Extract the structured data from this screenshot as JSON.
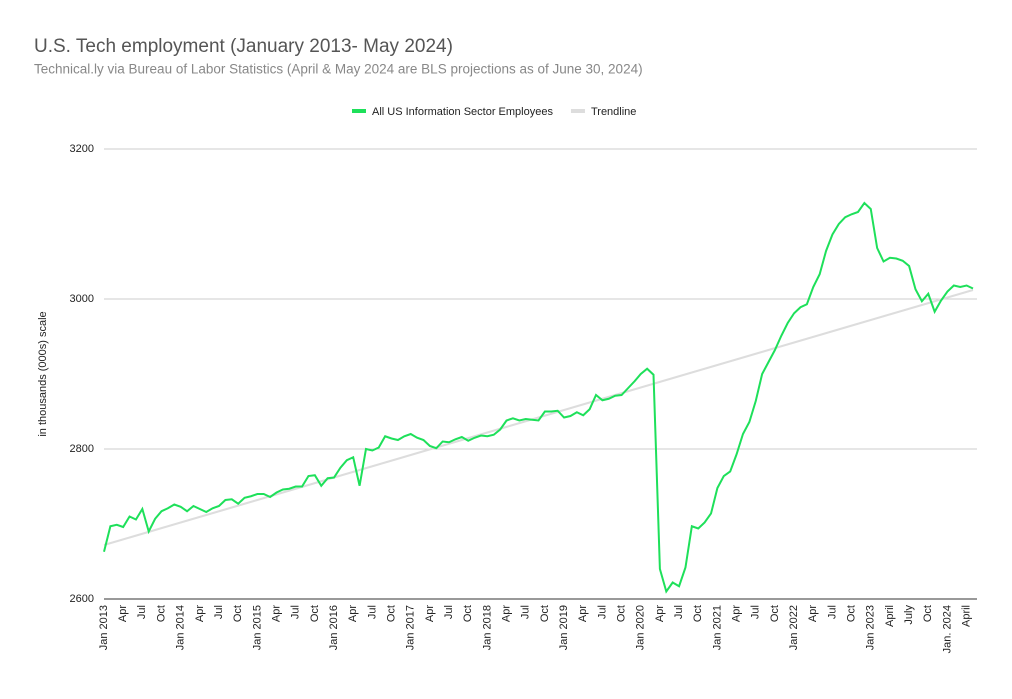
{
  "chart_data": {
    "type": "line",
    "title": "U.S. Tech employment (January 2013- May 2024)",
    "subtitle": "Technical.ly via Bureau of Labor Statistics (April & May 2024 are BLS projections as of June 30, 2024)",
    "y_label": "in thousands (000s) scale",
    "categories": [
      "Jan 2013",
      null,
      null,
      "Apr",
      null,
      null,
      "Jul",
      null,
      null,
      "Oct",
      null,
      null,
      "Jan 2014",
      null,
      null,
      "Apr",
      null,
      null,
      "Jul",
      null,
      null,
      "Oct",
      null,
      null,
      "Jan 2015",
      null,
      null,
      "Apr",
      null,
      null,
      "Jul",
      null,
      null,
      "Oct",
      null,
      null,
      "Jan 2016",
      null,
      null,
      "Apr",
      null,
      null,
      "Jul",
      null,
      null,
      "Oct",
      null,
      null,
      "Jan 2017",
      null,
      null,
      "Apr",
      null,
      null,
      "Jul",
      null,
      null,
      "Oct",
      null,
      null,
      "Jan 2018",
      null,
      null,
      "Apr",
      null,
      null,
      "Jul",
      null,
      null,
      "Oct",
      null,
      null,
      "Jan 2019",
      null,
      null,
      "Apr",
      null,
      null,
      "Jul",
      null,
      null,
      "Oct",
      null,
      null,
      "Jan 2020",
      null,
      null,
      "Apr",
      null,
      null,
      "Jul",
      null,
      null,
      "Oct",
      null,
      null,
      "Jan 2021",
      null,
      null,
      "Apr",
      null,
      null,
      "Jul",
      null,
      null,
      "Oct",
      null,
      null,
      "Jan 2022",
      null,
      null,
      "Apr",
      null,
      null,
      "Jul",
      null,
      null,
      "Oct",
      null,
      null,
      "Jan 2023",
      null,
      null,
      "April",
      null,
      null,
      "July",
      null,
      null,
      "Oct",
      null,
      null,
      "Jan. 2024",
      null,
      null,
      "April",
      null
    ],
    "series": [
      {
        "name": "All US Information Sector Employees",
        "color": "#1ee05a",
        "values": [
          2663,
          2697,
          2699,
          2696,
          2710,
          2706,
          2720,
          2690,
          2707,
          2717,
          2721,
          2726,
          2723,
          2717,
          2724,
          2720,
          2716,
          2721,
          2724,
          2732,
          2733,
          2727,
          2735,
          2737,
          2740,
          2740,
          2736,
          2742,
          2746,
          2747,
          2750,
          2750,
          2764,
          2765,
          2751,
          2761,
          2762,
          2775,
          2785,
          2789,
          2751,
          2800,
          2798,
          2802,
          2817,
          2814,
          2812,
          2817,
          2820,
          2815,
          2812,
          2804,
          2801,
          2810,
          2809,
          2813,
          2816,
          2811,
          2815,
          2818,
          2817,
          2819,
          2826,
          2838,
          2841,
          2838,
          2840,
          2839,
          2838,
          2850,
          2850,
          2851,
          2842,
          2844,
          2849,
          2845,
          2853,
          2872,
          2865,
          2867,
          2871,
          2872,
          2881,
          2890,
          2900,
          2907,
          2899,
          2640,
          2610,
          2622,
          2617,
          2642,
          2697,
          2694,
          2702,
          2714,
          2748,
          2764,
          2770,
          2793,
          2820,
          2836,
          2864,
          2900,
          2916,
          2932,
          2951,
          2968,
          2981,
          2989,
          2993,
          3016,
          3033,
          3064,
          3086,
          3100,
          3109,
          3113,
          3116,
          3128,
          3120,
          3068,
          3050,
          3055,
          3054,
          3051,
          3044,
          3013,
          2997,
          3007,
          2983,
          2998,
          3010,
          3018,
          3016,
          3018,
          3014
        ]
      },
      {
        "name": "Trendline",
        "color": "#dddddd",
        "values": [
          2672,
          2674.5,
          2677,
          2679.5,
          2682,
          2684.5,
          2687,
          2689.5,
          2692,
          2694.5,
          2697,
          2699.5,
          2702,
          2704.5,
          2707,
          2709.5,
          2712,
          2714.5,
          2717,
          2719.5,
          2722,
          2724.5,
          2727,
          2729.5,
          2732,
          2734.5,
          2737,
          2739.5,
          2742,
          2744.5,
          2747,
          2749.5,
          2752,
          2754.5,
          2757,
          2759.5,
          2762,
          2764.5,
          2767,
          2769.5,
          2772,
          2774.5,
          2777,
          2779.5,
          2782,
          2784.5,
          2787,
          2789.5,
          2792,
          2794.5,
          2797,
          2799.5,
          2802,
          2804.5,
          2807,
          2809.5,
          2812,
          2814.5,
          2817,
          2819.5,
          2822,
          2824.5,
          2827,
          2829.5,
          2832,
          2834.5,
          2837,
          2839.5,
          2842,
          2844.5,
          2847,
          2849.5,
          2852,
          2854.5,
          2857,
          2859.5,
          2862,
          2864.5,
          2867,
          2869.5,
          2872,
          2874.5,
          2877,
          2879.5,
          2882,
          2884.5,
          2887,
          2889.5,
          2892,
          2894.5,
          2897,
          2899.5,
          2902,
          2904.5,
          2907,
          2909.5,
          2912,
          2914.5,
          2917,
          2919.5,
          2922,
          2924.5,
          2927,
          2929.5,
          2932,
          2934.5,
          2937,
          2939.5,
          2942,
          2944.5,
          2947,
          2949.5,
          2952,
          2954.5,
          2957,
          2959.5,
          2962,
          2964.5,
          2967,
          2969.5,
          2972,
          2974.5,
          2977,
          2979.5,
          2982,
          2984.5,
          2987,
          2989.5,
          2992,
          2994.5,
          2997,
          2999.5,
          3002,
          3004.5,
          3007,
          3009.5,
          3012
        ]
      }
    ],
    "ylim": [
      2600,
      3200
    ],
    "yticks": [
      2600,
      2800,
      3000,
      3200
    ],
    "grid": true,
    "legend": "top"
  }
}
